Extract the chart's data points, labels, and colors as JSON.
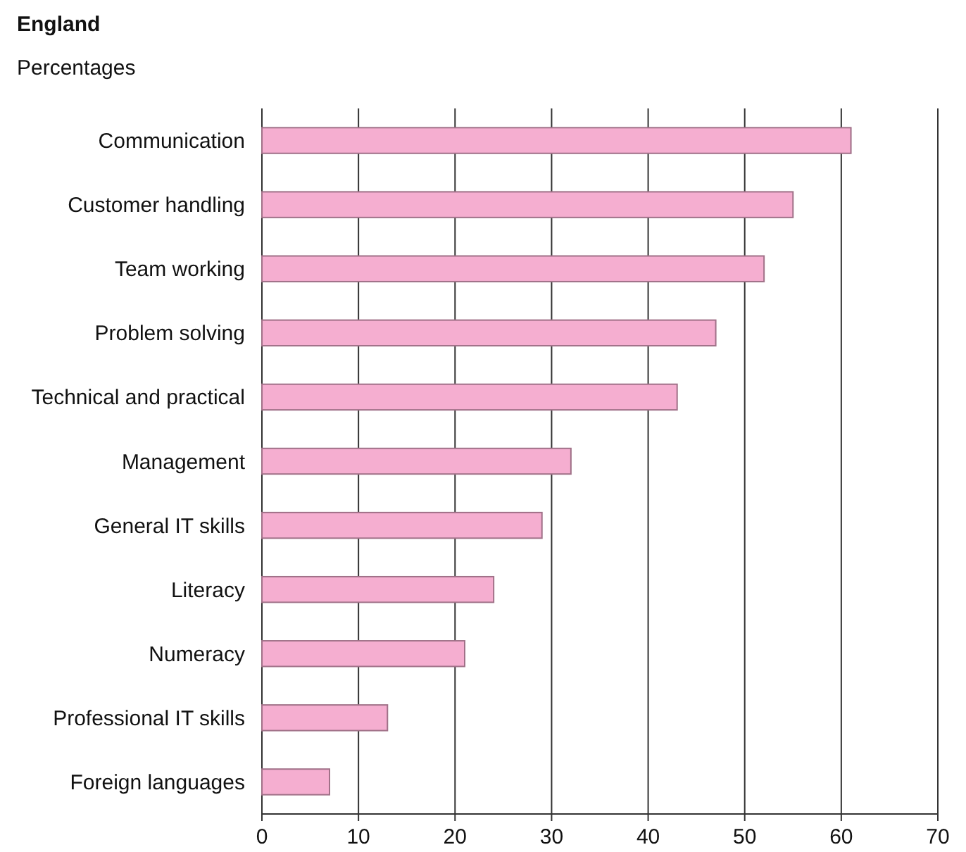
{
  "chart_data": {
    "type": "bar",
    "orientation": "horizontal",
    "title": "England",
    "subtitle": "Percentages",
    "categories": [
      "Communication",
      "Customer handling",
      "Team working",
      "Problem solving",
      "Technical and practical",
      "Management",
      "General IT skills",
      "Literacy",
      "Numeracy",
      "Professional IT skills",
      "Foreign languages"
    ],
    "values": [
      61,
      55,
      52,
      47,
      43,
      32,
      29,
      24,
      21,
      13,
      7
    ],
    "color": "#f5aed0",
    "xlim": [
      0,
      70
    ],
    "xticks": [
      0,
      10,
      20,
      30,
      40,
      50,
      60,
      70
    ],
    "grid": "x"
  }
}
